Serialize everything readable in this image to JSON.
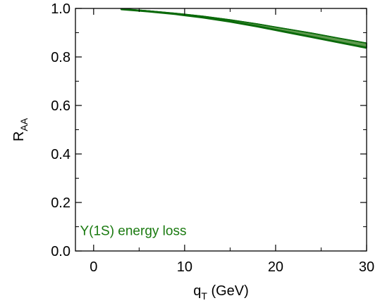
{
  "chart_data": {
    "type": "area",
    "xlabel": {
      "main": "q",
      "sub": "T",
      "unit": " (GeV)"
    },
    "ylabel": {
      "main": "R",
      "sub": "AA"
    },
    "xlim": [
      -2,
      30
    ],
    "ylim": [
      0.0,
      1.0
    ],
    "x_ticks": [
      0,
      10,
      20,
      30
    ],
    "x_tick_labels": [
      "0",
      "10",
      "20",
      "30"
    ],
    "y_ticks": [
      0.0,
      0.2,
      0.4,
      0.6,
      0.8,
      1.0
    ],
    "y_tick_labels": [
      "0.0",
      "0.2",
      "0.4",
      "0.6",
      "0.8",
      "1.0"
    ],
    "grid": false,
    "series": [
      {
        "color": "#0a6a0a",
        "fill_color": "#5e9a4e",
        "x": [
          3,
          6,
          9,
          12,
          15,
          18,
          21,
          24,
          27,
          30
        ],
        "upper": [
          0.998,
          0.99,
          0.98,
          0.968,
          0.953,
          0.936,
          0.917,
          0.898,
          0.877,
          0.857
        ],
        "lower": [
          0.997,
          0.988,
          0.977,
          0.963,
          0.946,
          0.926,
          0.904,
          0.882,
          0.86,
          0.838
        ]
      }
    ],
    "annotations": [
      {
        "text": "Υ(1S) energy loss",
        "color": "#1a7a10",
        "x": -1.5,
        "y": 0.085
      }
    ]
  }
}
